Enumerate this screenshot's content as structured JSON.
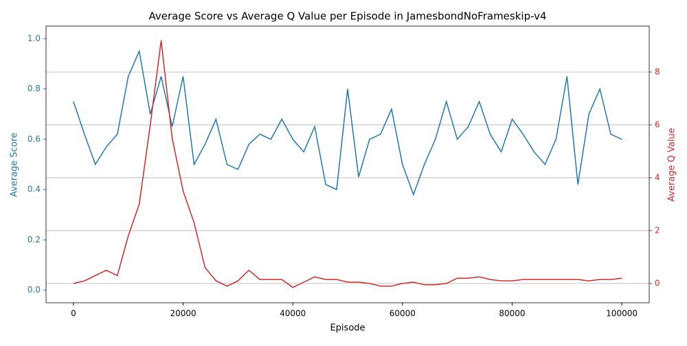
{
  "chart_data": {
    "type": "line",
    "title": "Average Score vs Average Q Value per Episode in JamesbondNoFrameskip-v4",
    "x_label": "Episode",
    "y_label": "Average Score",
    "y2_label": "Average Q Value",
    "x": [
      0,
      2000,
      4000,
      6000,
      8000,
      10000,
      12000,
      14000,
      16000,
      18000,
      20000,
      22000,
      24000,
      26000,
      28000,
      30000,
      32000,
      34000,
      36000,
      38000,
      40000,
      42000,
      44000,
      46000,
      48000,
      50000,
      52000,
      54000,
      56000,
      58000,
      60000,
      62000,
      64000,
      66000,
      68000,
      70000,
      72000,
      74000,
      76000,
      78000,
      80000,
      82000,
      84000,
      86000,
      88000,
      90000,
      92000,
      94000,
      96000,
      98000,
      100000
    ],
    "series": [
      {
        "color": "#1f77b4",
        "axis": "y",
        "values": [
          0.75,
          0.62,
          0.5,
          0.57,
          0.62,
          0.85,
          0.95,
          0.7,
          0.85,
          0.65,
          0.85,
          0.5,
          0.58,
          0.68,
          0.5,
          0.48,
          0.58,
          0.62,
          0.6,
          0.68,
          0.6,
          0.55,
          0.65,
          0.42,
          0.4,
          0.8,
          0.45,
          0.6,
          0.62,
          0.72,
          0.5,
          0.38,
          0.5,
          0.6,
          0.75,
          0.6,
          0.65,
          0.75,
          0.62,
          0.55,
          0.68,
          0.62,
          0.55,
          0.5,
          0.6,
          0.85,
          0.42,
          0.7,
          0.8,
          0.62,
          0.6
        ]
      },
      {
        "color": "#d62728",
        "axis": "y2",
        "values": [
          0.0,
          0.1,
          0.3,
          0.5,
          0.3,
          1.8,
          3.0,
          6.0,
          9.2,
          5.5,
          3.5,
          2.3,
          0.6,
          0.1,
          -0.1,
          0.1,
          0.5,
          0.15,
          0.15,
          0.15,
          -0.15,
          0.05,
          0.25,
          0.15,
          0.15,
          0.05,
          0.05,
          0.0,
          -0.1,
          -0.1,
          0.0,
          0.05,
          -0.05,
          -0.05,
          0.0,
          0.2,
          0.2,
          0.25,
          0.15,
          0.1,
          0.1,
          0.15,
          0.15,
          0.15,
          0.15,
          0.15,
          0.15,
          0.1,
          0.15,
          0.15,
          0.2
        ]
      }
    ],
    "xlim": [
      -5000,
      105000
    ],
    "xticks": [
      0,
      20000,
      40000,
      60000,
      80000,
      100000
    ],
    "ylim": [
      -0.05,
      1.05
    ],
    "yticks": [
      {
        "value": 0,
        "label": "0.0"
      },
      0.2,
      0.4,
      0.6,
      0.8,
      {
        "value": 1,
        "label": "1.0"
      }
    ],
    "y2lim": [
      -0.73,
      9.74
    ],
    "y2ticks": [
      0,
      2,
      4,
      6,
      8
    ],
    "grid": "y2"
  }
}
